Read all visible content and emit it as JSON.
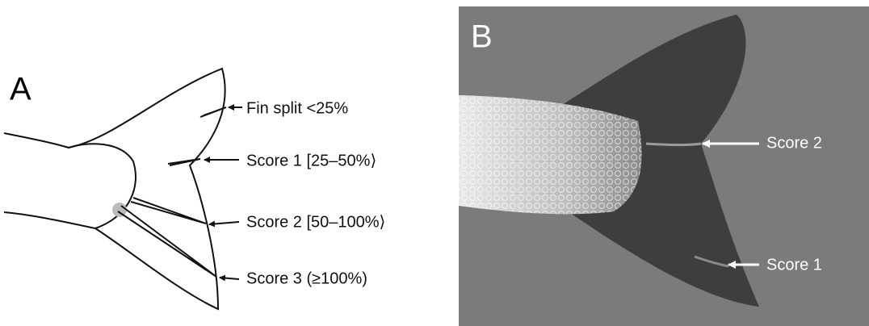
{
  "panels": [
    {
      "label": "A",
      "annotations": [
        "Fin split <25%",
        "Score 1 [25–50%⟩",
        "Score 2 [50–100%⟩",
        "Score 3 (≥100%)"
      ]
    },
    {
      "label": "B",
      "annotations": [
        "Score 2",
        "Score 1"
      ]
    }
  ]
}
